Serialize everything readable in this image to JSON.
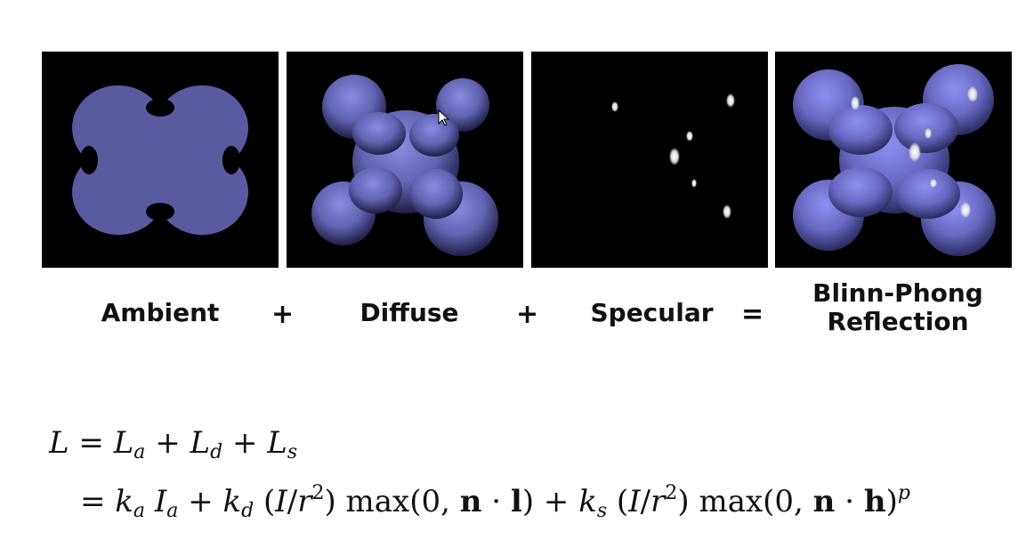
{
  "labels": {
    "ambient": "Ambient",
    "diffuse": "Diffuse",
    "specular": "Specular",
    "blinn_line1": "Blinn-Phong",
    "blinn_line2": "Reflection",
    "plus1": "+",
    "plus2": "+",
    "equals": "="
  },
  "colors": {
    "shape": "#5a5aa0",
    "background": "#000000"
  },
  "icons": [
    "mouse-cursor-icon"
  ]
}
